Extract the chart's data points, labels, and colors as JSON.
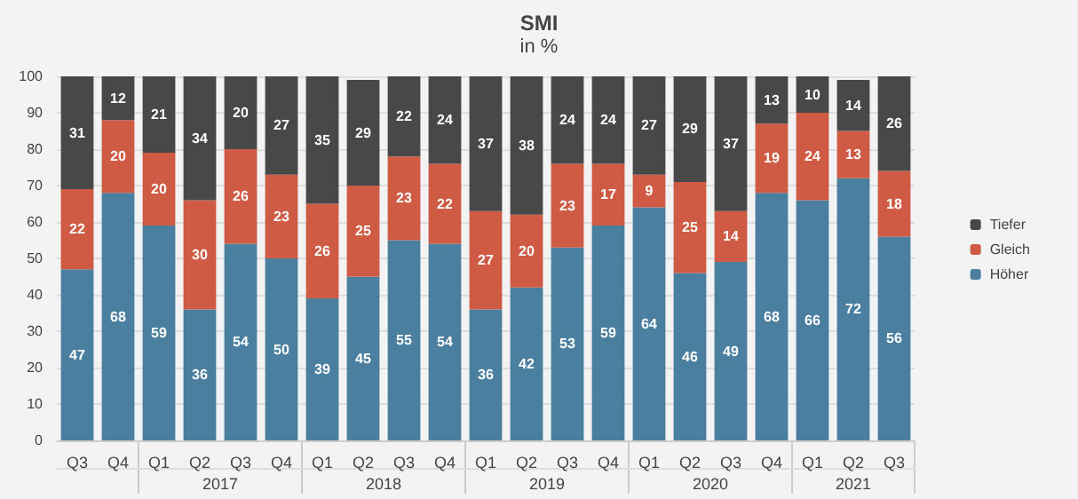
{
  "chart_data": {
    "type": "bar",
    "title": "SMI",
    "subtitle": "in %",
    "stacked": true,
    "categories": [
      "Q3",
      "Q4",
      "Q1",
      "Q2",
      "Q3",
      "Q4",
      "Q1",
      "Q2",
      "Q3",
      "Q4",
      "Q1",
      "Q2",
      "Q3",
      "Q4",
      "Q1",
      "Q2",
      "Q3",
      "Q4",
      "Q1",
      "Q2",
      "Q3"
    ],
    "annotations": [
      "2017",
      "2018",
      "2019",
      "2020",
      "2021"
    ],
    "series": [
      {
        "name": "Höher",
        "color": "#4a7fa0",
        "values": [
          47,
          68,
          59,
          36,
          54,
          50,
          39,
          45,
          55,
          54,
          36,
          42,
          53,
          59,
          64,
          46,
          49,
          68,
          66,
          72,
          56
        ]
      },
      {
        "name": "Gleich",
        "color": "#d05b45",
        "values": [
          22,
          20,
          20,
          30,
          26,
          23,
          26,
          25,
          23,
          22,
          27,
          20,
          23,
          17,
          9,
          25,
          14,
          19,
          24,
          13,
          18
        ]
      },
      {
        "name": "Tiefer",
        "color": "#484848",
        "values": [
          31,
          12,
          21,
          34,
          20,
          27,
          35,
          29,
          22,
          24,
          37,
          38,
          24,
          24,
          27,
          29,
          37,
          13,
          10,
          14,
          26
        ]
      }
    ],
    "ylim": [
      0,
      100
    ],
    "yticks": [
      0,
      10,
      20,
      30,
      40,
      50,
      60,
      70,
      80,
      90,
      100
    ],
    "grid": "y",
    "legend": "right",
    "data_labels": true
  }
}
